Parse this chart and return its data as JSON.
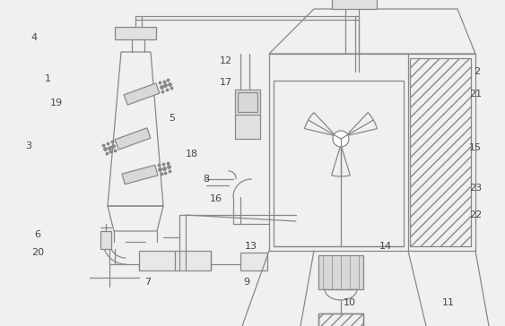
{
  "bg": "#f0f0f0",
  "lc": "#888888",
  "tc": "#444444",
  "lw": 0.9
}
